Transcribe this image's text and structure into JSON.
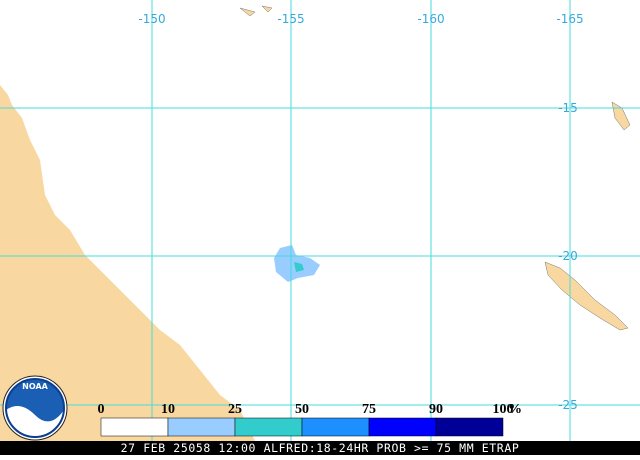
{
  "map": {
    "lon_labels": [
      "-150",
      "-155",
      "-160",
      "-165"
    ],
    "lat_labels": [
      "-15",
      "-20",
      "-25"
    ],
    "legend": {
      "labels": [
        "0",
        "10",
        "25",
        "50",
        "75",
        "90",
        "100"
      ],
      "unit": "%",
      "colors": [
        "#ffffff",
        "#99ccff",
        "#33cccc",
        "#1e8fff",
        "#0000ff",
        "#000099"
      ]
    },
    "logo": "NOAA",
    "footer": "27 FEB 25058 12:00 ALFRED:18-24HR PROB >= 75 MM ETRAP"
  }
}
